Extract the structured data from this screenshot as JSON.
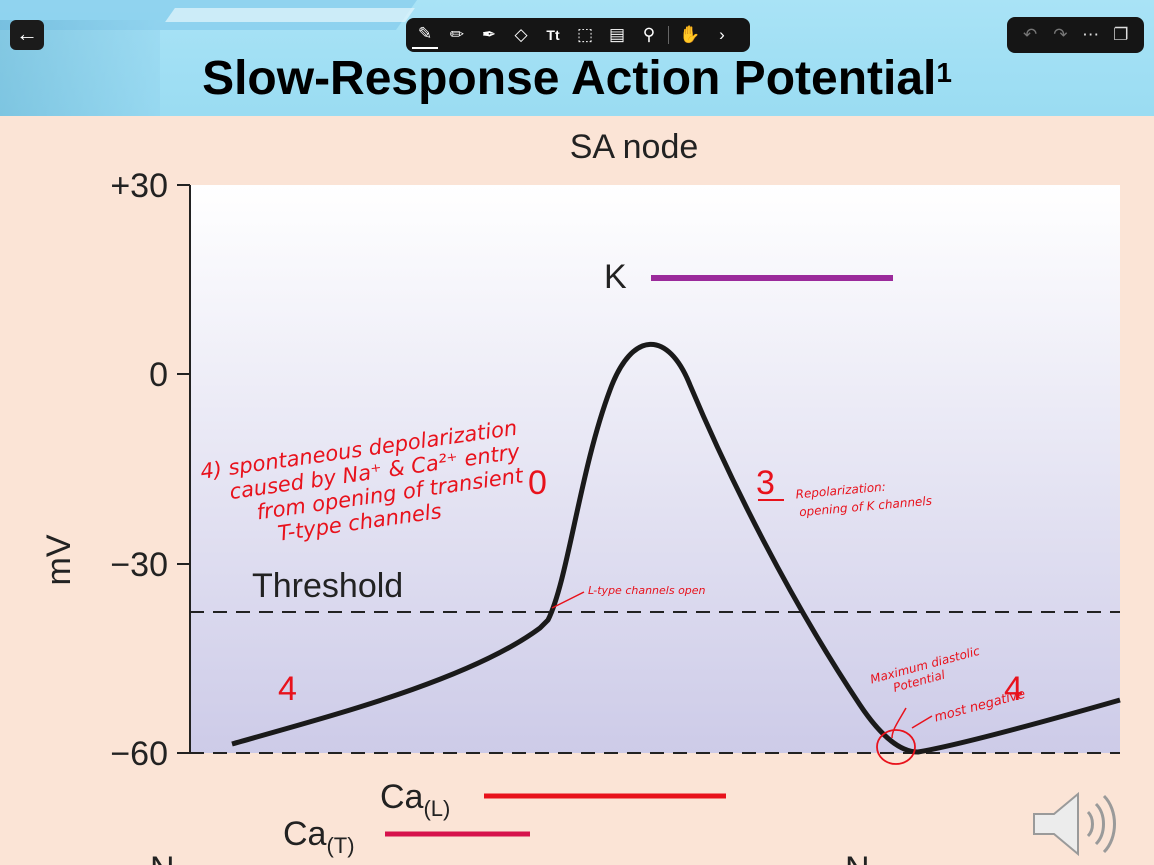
{
  "toolbar": {
    "back_icon": "arrow-left-icon",
    "tools": [
      "pen-icon",
      "pencil-icon",
      "highlighter-icon",
      "eraser-icon",
      "text-tool-icon",
      "lasso-select-icon",
      "image-icon",
      "microphone-icon",
      "hand-draw-icon",
      "more-chevron-icon"
    ],
    "right_tools": [
      "undo-icon",
      "redo-icon",
      "more-options-icon",
      "pages-icon"
    ]
  },
  "slide": {
    "title": "Slow-Response Action Potential",
    "footnote_mark": "1"
  },
  "chart_data": {
    "type": "line",
    "title": "SA node",
    "ylabel": "mV",
    "yticks": [
      "+30",
      "0",
      "−30",
      "−60"
    ],
    "ylim": [
      -60,
      30
    ],
    "threshold_label": "Threshold",
    "threshold_mv": -38,
    "series": [
      {
        "x": [
          0.05,
          0.2,
          0.35,
          0.4,
          0.41,
          0.46,
          0.5,
          0.62,
          0.7,
          0.76,
          1.0
        ],
        "y": [
          -59,
          -52,
          -43,
          -39,
          -36,
          -10,
          5,
          -26,
          -50,
          -60,
          -52
        ]
      }
    ],
    "phase_labels": {
      "phase4_left": "4",
      "phase0": "0",
      "phase3": "3",
      "phase4_right": "4"
    },
    "currents": [
      {
        "name": "K",
        "color": "#9b2a9b"
      },
      {
        "name": "Ca",
        "sub": "(L)",
        "color": "#e8121c"
      },
      {
        "name": "Ca",
        "sub": "(T)",
        "color": "#d6124c"
      }
    ],
    "bottom_cut_labels": [
      "N",
      "N"
    ]
  },
  "annotations": {
    "phase4_note": [
      "4) spontaneous depolarization",
      "caused by Na⁺ & Ca²⁺ entry",
      "from opening of transient",
      "T-type channels"
    ],
    "ltype_note": "L-type channels open",
    "phase3_note": [
      "Repolarization:",
      "opening of K channels"
    ],
    "mdp_note": [
      "Maximum diastolic",
      "Potential"
    ],
    "most_negative": "most negative"
  },
  "audio_icon": "speaker-icon"
}
